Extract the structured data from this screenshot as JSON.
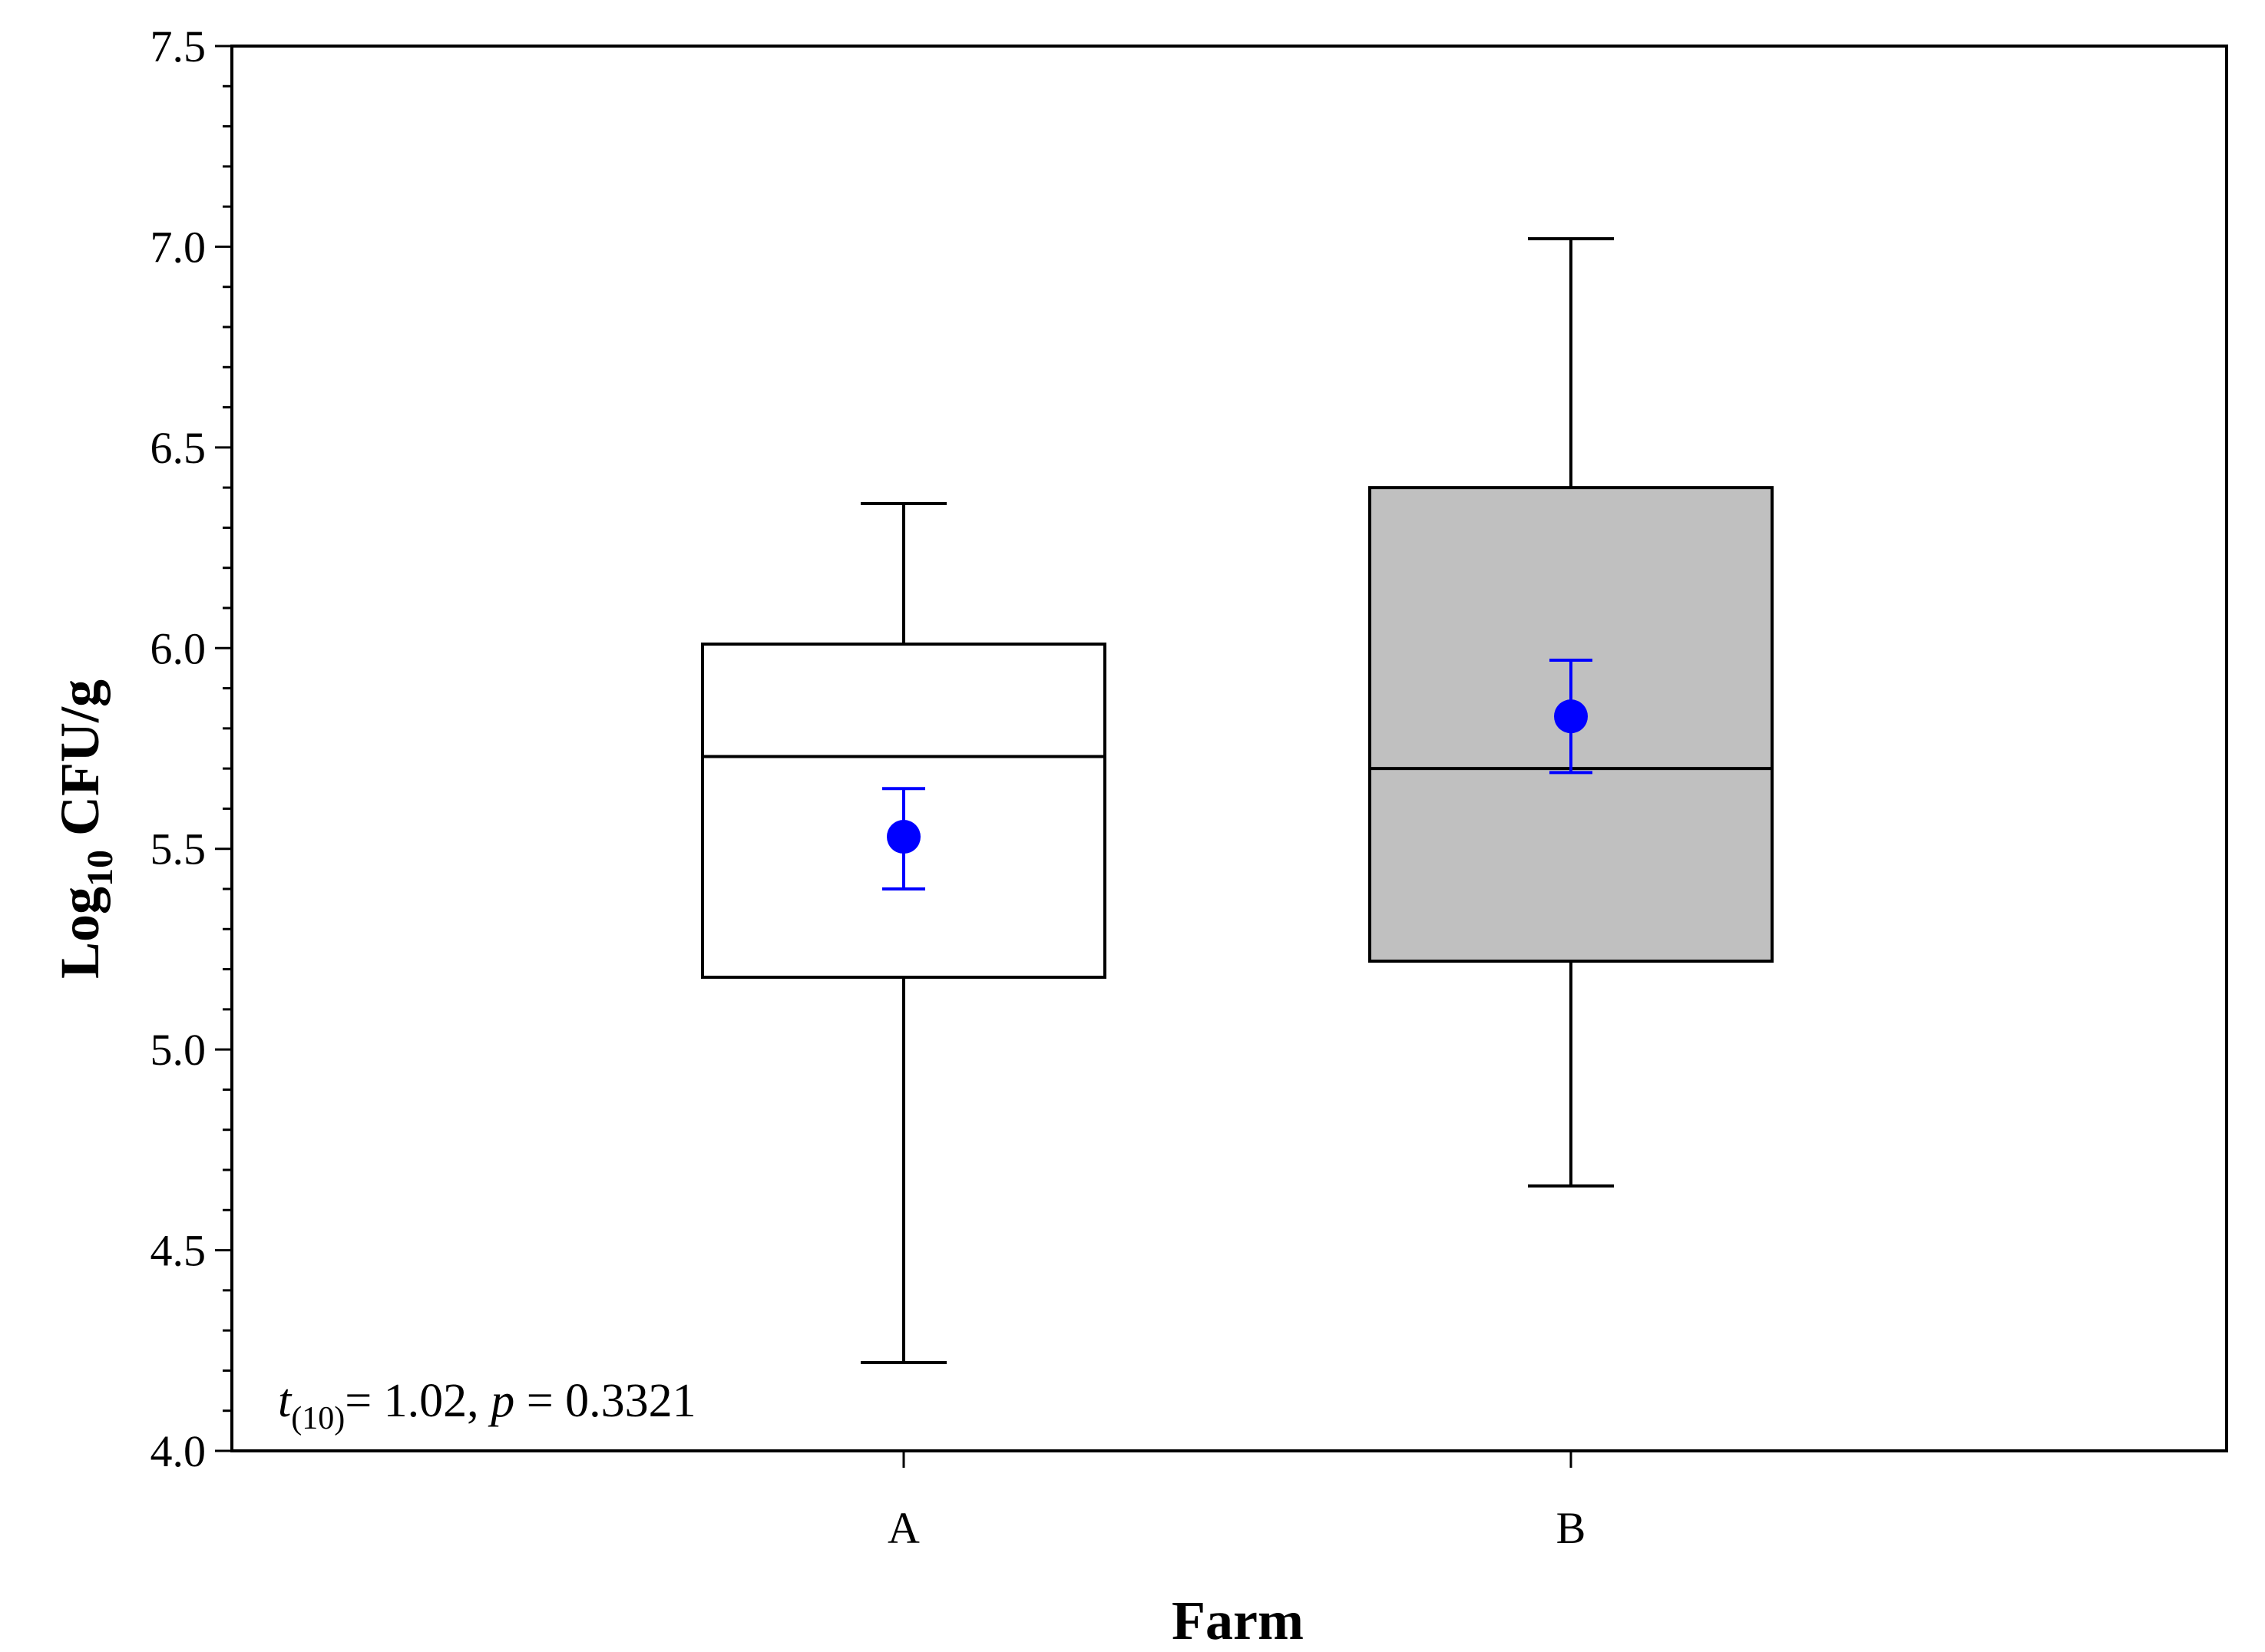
{
  "chart_data": {
    "type": "box",
    "xlabel": "Farm",
    "ylabel": {
      "base": "Log",
      "sub": "10",
      "rest": " CFU/g"
    },
    "ylim": [
      4.0,
      7.5
    ],
    "yticks": [
      "4.0",
      "4.5",
      "5.0",
      "5.5",
      "6.0",
      "6.5",
      "7.0",
      "7.5"
    ],
    "categories": [
      "A",
      "B"
    ],
    "boxes": [
      {
        "category": "A",
        "min": 4.22,
        "q1": 5.18,
        "median": 5.73,
        "q3": 6.01,
        "max": 6.36,
        "mean": 5.53,
        "mean_err_low": 5.4,
        "mean_err_high": 5.65,
        "fill": "#ffffff"
      },
      {
        "category": "B",
        "min": 4.66,
        "q1": 5.22,
        "median": 5.7,
        "q3": 6.4,
        "max": 7.02,
        "mean": 5.83,
        "mean_err_low": 5.69,
        "mean_err_high": 5.97,
        "fill": "#c0c0c0"
      }
    ],
    "annotation": {
      "t": "t",
      "df": "(10)",
      "stat": "= 1.02, ",
      "p": "p",
      "pval": " = 0.3321"
    },
    "colors": {
      "mean_marker": "#0000ff",
      "box_stroke": "#000000"
    },
    "grid": false,
    "legend": "none"
  }
}
